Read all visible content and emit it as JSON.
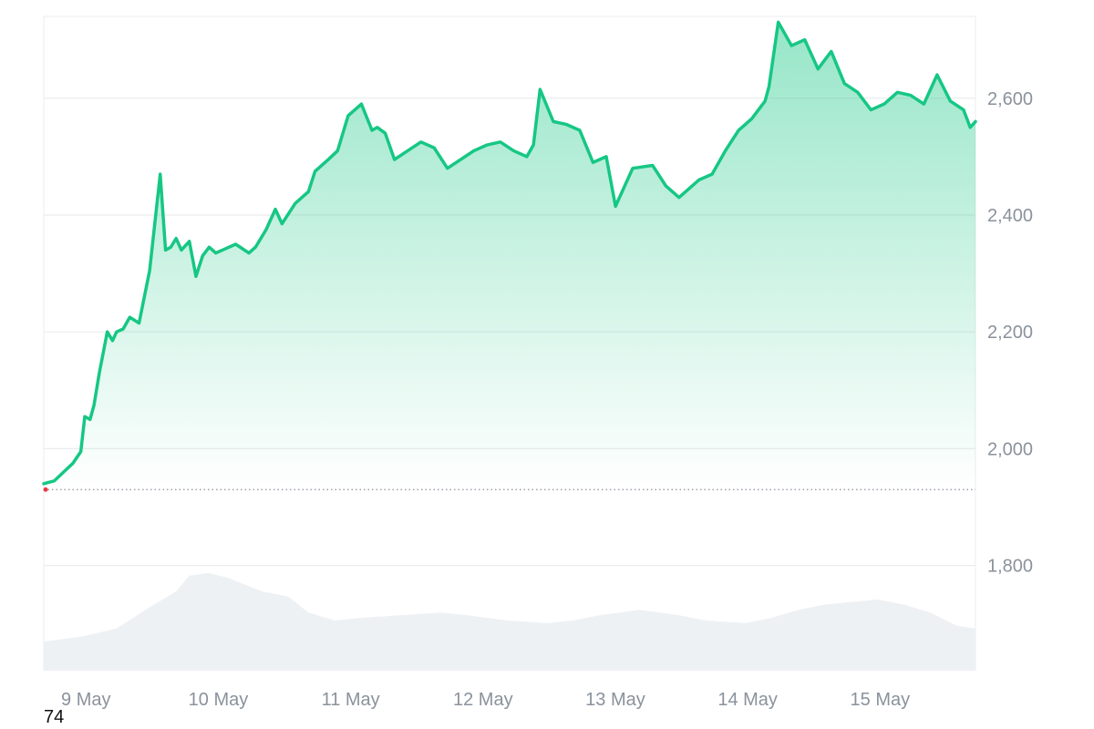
{
  "chart_data": {
    "type": "area",
    "y_axis_position": "right",
    "ylim": [
      1620,
      2740
    ],
    "y_ticks": [
      1800,
      2000,
      2200,
      2400,
      2600
    ],
    "y_tick_labels": [
      "1,800",
      "2,000",
      "2,200",
      "2,400",
      "2,600"
    ],
    "x_range": [
      0,
      7.04
    ],
    "x_ticks": [
      0.25,
      1.25,
      2.25,
      3.25,
      4.25,
      5.25,
      6.25
    ],
    "x_tick_labels": [
      "9 May",
      "10 May",
      "11 May",
      "12 May",
      "13 May",
      "14 May",
      "15 May"
    ],
    "baseline": 1930,
    "grid": "horizontal",
    "series": [
      {
        "role": "price",
        "x": [
          0,
          0.08,
          0.15,
          0.22,
          0.28,
          0.31,
          0.35,
          0.38,
          0.42,
          0.48,
          0.52,
          0.55,
          0.6,
          0.65,
          0.72,
          0.8,
          0.88,
          0.92,
          0.96,
          1.0,
          1.04,
          1.1,
          1.15,
          1.2,
          1.25,
          1.3,
          1.35,
          1.45,
          1.55,
          1.6,
          1.68,
          1.75,
          1.8,
          1.9,
          2.0,
          2.05,
          2.15,
          2.22,
          2.3,
          2.4,
          2.48,
          2.52,
          2.58,
          2.65,
          2.75,
          2.85,
          2.95,
          3.05,
          3.15,
          3.25,
          3.35,
          3.45,
          3.55,
          3.65,
          3.7,
          3.75,
          3.85,
          3.95,
          4.05,
          4.15,
          4.25,
          4.32,
          4.45,
          4.6,
          4.7,
          4.8,
          4.95,
          5.05,
          5.15,
          5.25,
          5.35,
          5.45,
          5.48,
          5.55,
          5.65,
          5.75,
          5.85,
          5.95,
          6.05,
          6.15,
          6.25,
          6.35,
          6.45,
          6.55,
          6.65,
          6.75,
          6.85,
          6.95,
          7.0,
          7.04
        ],
        "y": [
          1940,
          1945,
          1960,
          1975,
          1995,
          2055,
          2050,
          2075,
          2130,
          2200,
          2185,
          2200,
          2205,
          2225,
          2215,
          2305,
          2470,
          2340,
          2345,
          2360,
          2340,
          2355,
          2295,
          2330,
          2345,
          2335,
          2340,
          2350,
          2335,
          2345,
          2375,
          2410,
          2385,
          2420,
          2440,
          2475,
          2495,
          2510,
          2570,
          2590,
          2545,
          2550,
          2540,
          2495,
          2510,
          2525,
          2515,
          2480,
          2495,
          2510,
          2520,
          2525,
          2510,
          2500,
          2520,
          2615,
          2560,
          2555,
          2545,
          2490,
          2500,
          2415,
          2480,
          2485,
          2450,
          2430,
          2460,
          2470,
          2510,
          2545,
          2565,
          2595,
          2620,
          2730,
          2690,
          2700,
          2650,
          2680,
          2625,
          2610,
          2580,
          2590,
          2610,
          2605,
          2590,
          2640,
          2595,
          2580,
          2550,
          2560
        ]
      },
      {
        "role": "volume",
        "x": [
          0,
          0.3,
          0.55,
          0.8,
          1.0,
          1.1,
          1.25,
          1.4,
          1.65,
          1.85,
          2.0,
          2.2,
          2.4,
          2.7,
          3.0,
          3.2,
          3.5,
          3.8,
          4.0,
          4.2,
          4.5,
          4.8,
          5.0,
          5.3,
          5.5,
          5.7,
          5.9,
          6.1,
          6.3,
          6.5,
          6.7,
          6.9,
          7.04
        ],
        "y": [
          55,
          65,
          80,
          120,
          150,
          180,
          185,
          175,
          150,
          140,
          110,
          95,
          100,
          105,
          110,
          105,
          95,
          90,
          95,
          105,
          115,
          105,
          95,
          90,
          100,
          115,
          125,
          130,
          135,
          125,
          110,
          85,
          80
        ]
      }
    ]
  },
  "footnote": "74",
  "colors": {
    "line": "#16c784",
    "area_top": "#16c784",
    "volume": "#eef1f4",
    "grid": "#eaecef",
    "baseline": "#8a929c",
    "start_marker": "#ea3943"
  }
}
